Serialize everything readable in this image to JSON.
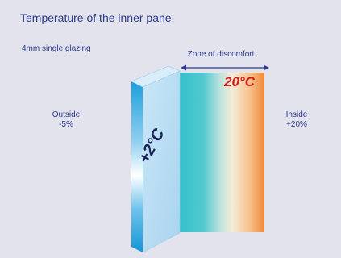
{
  "title": "Temperature of the inner pane",
  "subtitle": "4mm single glazing",
  "zone_label": "Zone of discomfort",
  "outside": {
    "label": "Outside",
    "value": "-5%"
  },
  "inside": {
    "label": "Inside",
    "value": "+20%"
  },
  "glass_temp": "+2°C",
  "inside_temp": "20°C",
  "colors": {
    "background": "#e3e3ee",
    "text": "#2a3a8a",
    "glass_face": "#bfe0f4",
    "glass_edge": "#1fa7e0",
    "zone_cold": "#3cc3cf",
    "zone_warm": "#f08a3a",
    "inside_temp": "#d21c1c"
  }
}
